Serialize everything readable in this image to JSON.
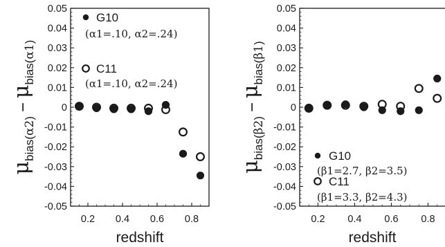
{
  "chart_data": [
    {
      "type": "scatter",
      "panel": "left",
      "title": "",
      "xlabel": "redshift",
      "ylabel": {
        "mu": "μ",
        "sub1_a": "bias(",
        "sub1_b": "α2",
        "sub1_c": ")",
        "minus": "−",
        "sub2_a": "bias(",
        "sub2_b": "α1",
        "sub2_c": ")"
      },
      "xlim": [
        0.1,
        0.9
      ],
      "ylim": [
        -0.05,
        0.05
      ],
      "xticks": [
        0.2,
        0.4,
        0.6,
        0.8
      ],
      "xtick_labels": [
        "0.2",
        "0.4",
        "0.6",
        "0.8"
      ],
      "yticks": [
        -0.05,
        -0.04,
        -0.03,
        -0.02,
        -0.01,
        0,
        0.01,
        0.02,
        0.03,
        0.04,
        0.05
      ],
      "ytick_labels": [
        "-0.05",
        "-0.04",
        "-0.03",
        "-0.02",
        "-0.01",
        "0",
        "0.01",
        "0.02",
        "0.03",
        "0.04",
        "0.05"
      ],
      "grid": false,
      "legend_position": "top-left",
      "series": [
        {
          "name": "G10",
          "params": "(α1=.10, α2=.24)",
          "marker": "filled-circle",
          "x": [
            0.15,
            0.25,
            0.35,
            0.45,
            0.55,
            0.65,
            0.75,
            0.85
          ],
          "y": [
            0.0005,
            -0.0005,
            -0.001,
            -0.001,
            -0.002,
            0.0012,
            -0.0235,
            -0.0345
          ]
        },
        {
          "name": "C11",
          "params": "(α1=.10, α2=.24)",
          "marker": "open-circle",
          "x": [
            0.15,
            0.25,
            0.35,
            0.45,
            0.55,
            0.65,
            0.75,
            0.85
          ],
          "y": [
            0.0005,
            0.0,
            -0.0005,
            -0.0005,
            -0.0005,
            -0.0012,
            -0.0125,
            -0.025
          ]
        }
      ]
    },
    {
      "type": "scatter",
      "panel": "right",
      "title": "",
      "xlabel": "redshift",
      "ylabel": {
        "mu": "μ",
        "sub1_a": "bias(",
        "sub1_b": "β2",
        "sub1_c": ")",
        "minus": "−",
        "sub2_a": "bias(",
        "sub2_b": "β1",
        "sub2_c": ")"
      },
      "xlim": [
        0.1,
        0.9
      ],
      "ylim": [
        -0.05,
        0.05
      ],
      "xticks": [
        0.2,
        0.4,
        0.6,
        0.8
      ],
      "xtick_labels": [
        "0.2",
        "0.4",
        "0.6",
        "0.8"
      ],
      "yticks": [
        -0.05,
        -0.04,
        -0.03,
        -0.02,
        -0.01,
        0,
        0.01,
        0.02,
        0.03,
        0.04,
        0.05
      ],
      "ytick_labels": [
        "-0.05",
        "-0.04",
        "-0.03",
        "-0.02",
        "-0.01",
        "0",
        "0.01",
        "0.02",
        "0.03",
        "0.04",
        "0.05"
      ],
      "grid": false,
      "legend_position": "bottom-left",
      "series": [
        {
          "name": "G10",
          "params": "(β1=2.7, β2=3.5)",
          "marker": "filled-circle",
          "x": [
            0.15,
            0.25,
            0.35,
            0.45,
            0.55,
            0.65,
            0.75,
            0.85
          ],
          "y": [
            -0.0005,
            0.001,
            0.0015,
            0.0,
            -0.0015,
            -0.002,
            -0.0015,
            0.0145
          ]
        },
        {
          "name": "C11",
          "params": "(β1=3.3, β2=4.3)",
          "marker": "open-circle",
          "x": [
            0.15,
            0.25,
            0.35,
            0.45,
            0.55,
            0.65,
            0.75,
            0.85
          ],
          "y": [
            -0.0005,
            0.001,
            0.001,
            0.0005,
            0.0015,
            0.0005,
            0.0095,
            0.0045
          ]
        }
      ]
    }
  ]
}
